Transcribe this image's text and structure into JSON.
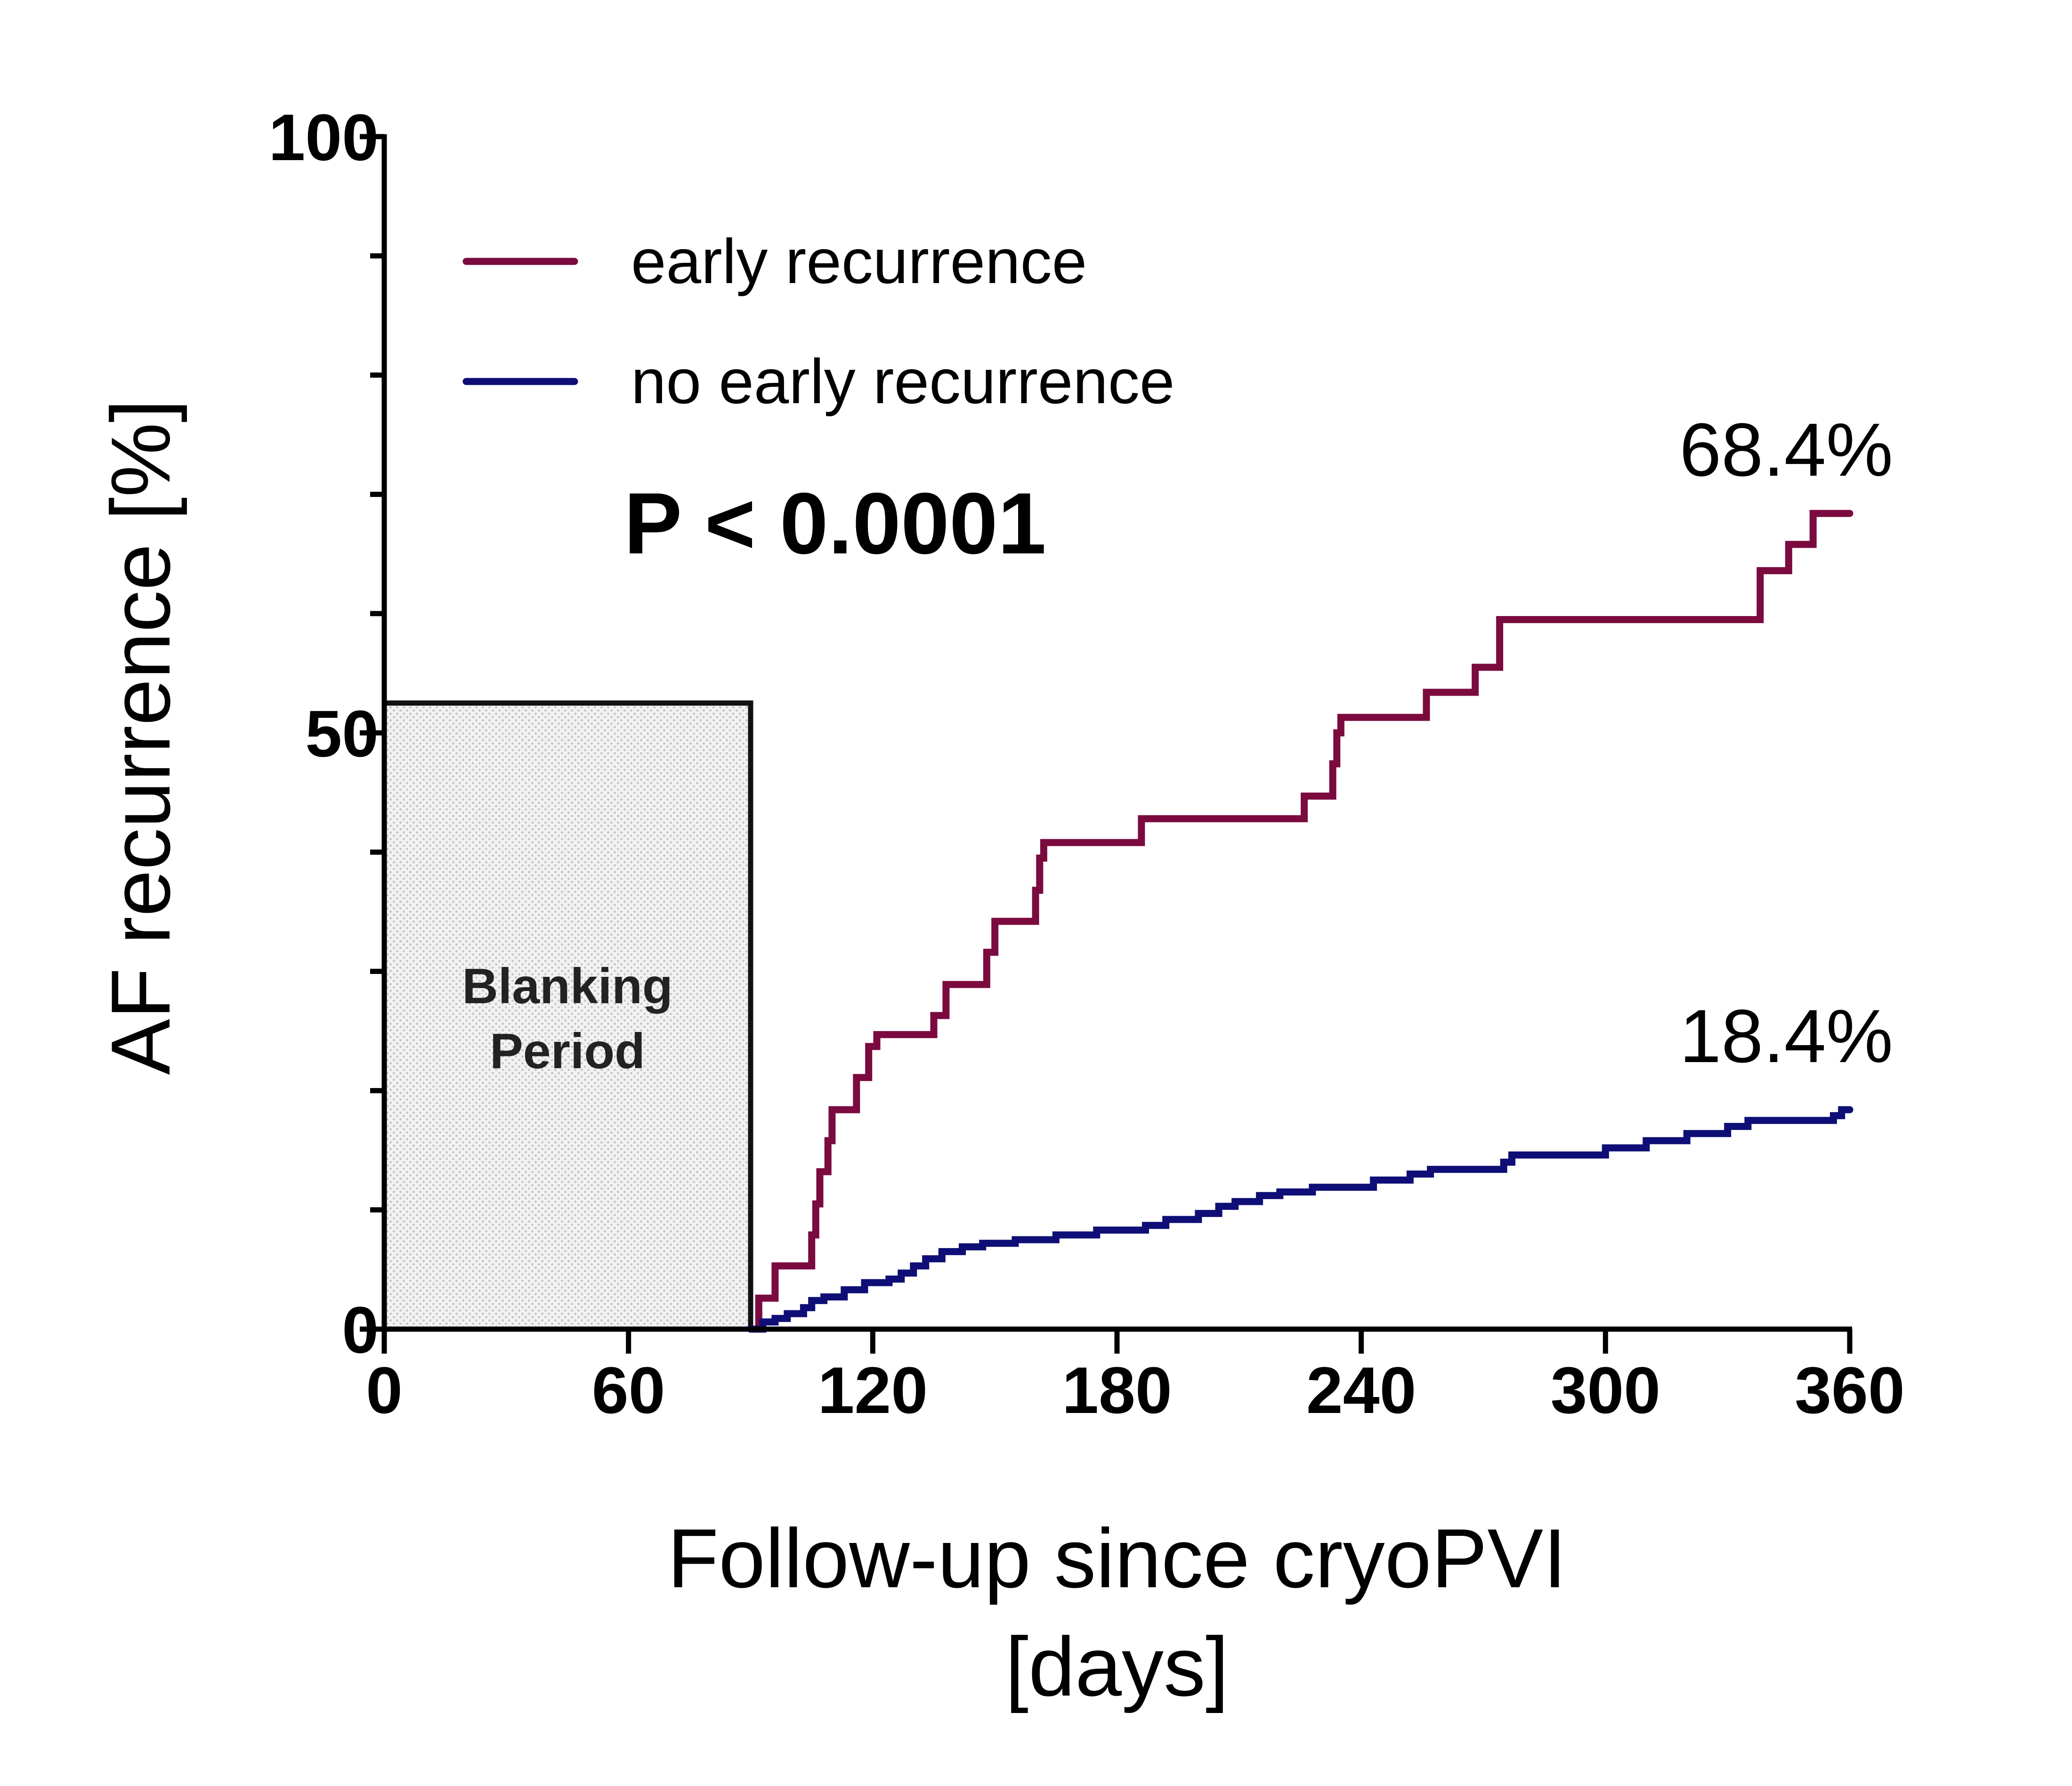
{
  "chart_data": {
    "type": "line",
    "title": "",
    "xlabel": [
      "Follow-up since cryoPVI",
      "[days]"
    ],
    "ylabel": "AF recurrence [%]",
    "xlim": [
      0,
      360
    ],
    "ylim": [
      0,
      100
    ],
    "x_ticks": [
      "0",
      "60",
      "120",
      "180",
      "240",
      "300",
      "360"
    ],
    "y_ticks": [
      "0",
      "50",
      "100"
    ],
    "y_minor_ticks": [
      10,
      20,
      30,
      40,
      60,
      70,
      80,
      90
    ],
    "grid": false,
    "legend_position": "top-left",
    "blanking_period": {
      "label": [
        "Blanking",
        "Period"
      ],
      "x_start": 0,
      "x_end": 90,
      "y_top": 52.5
    },
    "p_value": "P < 0.0001",
    "series": [
      {
        "name": "early recurrence",
        "color": "#7B0A3F",
        "end_label": "68.4%",
        "points": [
          [
            90,
            0
          ],
          [
            92,
            0
          ],
          [
            92,
            2.6
          ],
          [
            96,
            2.6
          ],
          [
            96,
            5.3
          ],
          [
            105,
            5.3
          ],
          [
            105,
            7.9
          ],
          [
            106,
            7.9
          ],
          [
            106,
            10.5
          ],
          [
            107,
            10.5
          ],
          [
            107,
            13.2
          ],
          [
            109,
            13.2
          ],
          [
            109,
            15.8
          ],
          [
            110,
            15.8
          ],
          [
            110,
            18.4
          ],
          [
            116,
            18.4
          ],
          [
            116,
            21.1
          ],
          [
            119,
            21.1
          ],
          [
            119,
            23.7
          ],
          [
            121,
            23.7
          ],
          [
            121,
            24.7
          ],
          [
            135,
            24.7
          ],
          [
            135,
            26.3
          ],
          [
            138,
            26.3
          ],
          [
            138,
            28.9
          ],
          [
            148,
            28.9
          ],
          [
            148,
            31.6
          ],
          [
            150,
            31.6
          ],
          [
            150,
            34.2
          ],
          [
            160,
            34.2
          ],
          [
            160,
            36.8
          ],
          [
            161,
            36.8
          ],
          [
            161,
            39.5
          ],
          [
            162,
            39.5
          ],
          [
            162,
            40.8
          ],
          [
            186,
            40.8
          ],
          [
            186,
            42.8
          ],
          [
            226,
            42.8
          ],
          [
            226,
            44.7
          ],
          [
            233,
            44.7
          ],
          [
            233,
            47.4
          ],
          [
            234,
            47.4
          ],
          [
            234,
            50
          ],
          [
            235,
            50
          ],
          [
            235,
            51.3
          ],
          [
            256,
            51.3
          ],
          [
            256,
            53.4
          ],
          [
            268,
            53.4
          ],
          [
            268,
            55.5
          ],
          [
            274,
            55.5
          ],
          [
            274,
            59.5
          ],
          [
            338,
            59.5
          ],
          [
            338,
            63.6
          ],
          [
            345,
            63.6
          ],
          [
            345,
            65.8
          ],
          [
            351,
            65.8
          ],
          [
            351,
            68.4
          ],
          [
            360,
            68.4
          ]
        ]
      },
      {
        "name": "no early recurrence",
        "color": "#0E0E76",
        "end_label": "18.4%",
        "points": [
          [
            90,
            0
          ],
          [
            93,
            0
          ],
          [
            93,
            0.6
          ],
          [
            96,
            0.6
          ],
          [
            96,
            0.9
          ],
          [
            99,
            0.9
          ],
          [
            99,
            1.3
          ],
          [
            103,
            1.3
          ],
          [
            103,
            1.8
          ],
          [
            105,
            1.8
          ],
          [
            105,
            2.4
          ],
          [
            108,
            2.4
          ],
          [
            108,
            2.7
          ],
          [
            113,
            2.7
          ],
          [
            113,
            3.3
          ],
          [
            118,
            3.3
          ],
          [
            118,
            3.9
          ],
          [
            124,
            3.9
          ],
          [
            124,
            4.2
          ],
          [
            127,
            4.2
          ],
          [
            127,
            4.7
          ],
          [
            130,
            4.7
          ],
          [
            130,
            5.3
          ],
          [
            133,
            5.3
          ],
          [
            133,
            5.9
          ],
          [
            137,
            5.9
          ],
          [
            137,
            6.5
          ],
          [
            142,
            6.5
          ],
          [
            142,
            6.9
          ],
          [
            147,
            6.9
          ],
          [
            147,
            7.2
          ],
          [
            155,
            7.2
          ],
          [
            155,
            7.5
          ],
          [
            165,
            7.5
          ],
          [
            165,
            7.9
          ],
          [
            175,
            7.9
          ],
          [
            175,
            8.3
          ],
          [
            187,
            8.3
          ],
          [
            187,
            8.7
          ],
          [
            192,
            8.7
          ],
          [
            192,
            9.2
          ],
          [
            200,
            9.2
          ],
          [
            200,
            9.7
          ],
          [
            205,
            9.7
          ],
          [
            205,
            10.3
          ],
          [
            209,
            10.3
          ],
          [
            209,
            10.7
          ],
          [
            215,
            10.7
          ],
          [
            215,
            11.2
          ],
          [
            220,
            11.2
          ],
          [
            220,
            11.5
          ],
          [
            228,
            11.5
          ],
          [
            228,
            11.9
          ],
          [
            243,
            11.9
          ],
          [
            243,
            12.5
          ],
          [
            252,
            12.5
          ],
          [
            252,
            13
          ],
          [
            257,
            13
          ],
          [
            257,
            13.4
          ],
          [
            275,
            13.4
          ],
          [
            275,
            14
          ],
          [
            277,
            14
          ],
          [
            277,
            14.6
          ],
          [
            300,
            14.6
          ],
          [
            300,
            15.2
          ],
          [
            310,
            15.2
          ],
          [
            310,
            15.8
          ],
          [
            320,
            15.8
          ],
          [
            320,
            16.4
          ],
          [
            330,
            16.4
          ],
          [
            330,
            17
          ],
          [
            335,
            17
          ],
          [
            335,
            17.5
          ],
          [
            356,
            17.5
          ],
          [
            356,
            17.9
          ],
          [
            358,
            17.9
          ],
          [
            358,
            18.4
          ],
          [
            360,
            18.4
          ]
        ]
      }
    ]
  }
}
